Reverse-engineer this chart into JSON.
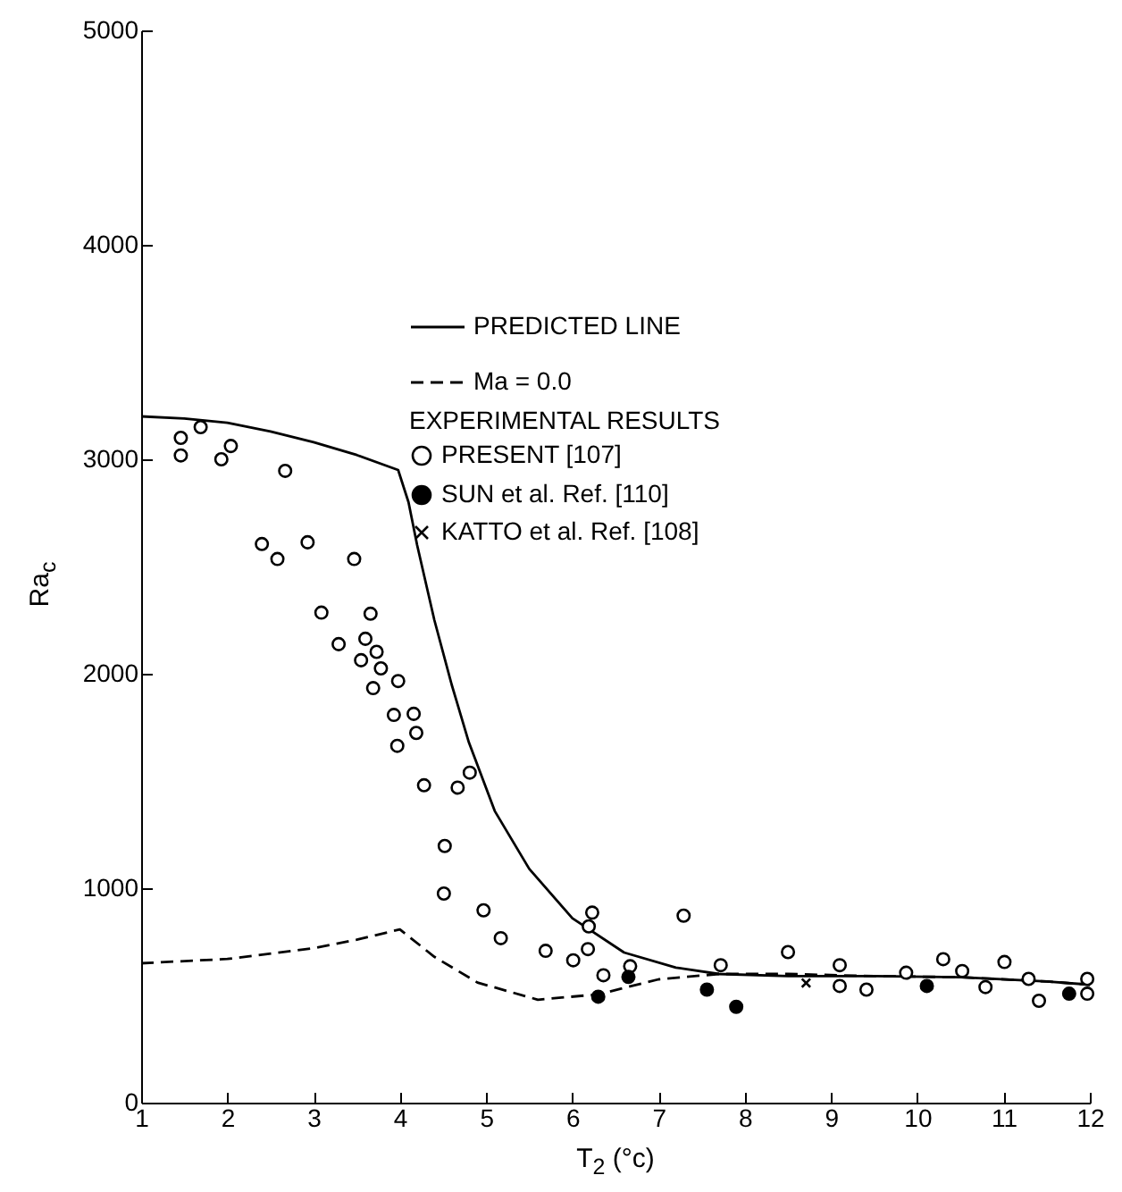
{
  "chart_data": {
    "type": "scatter",
    "xlabel": "T$_{2}$ (°c)",
    "ylabel": "Ra$_{c}$",
    "legend_title": "EXPERIMENTAL RESULTS",
    "legend": "top",
    "grid": false,
    "xlim": [
      1,
      12
    ],
    "xticks": [
      1,
      2,
      3,
      4,
      5,
      6,
      7,
      8,
      9,
      10,
      11,
      12
    ],
    "ylim": [
      0,
      5000
    ],
    "yticks": [
      0,
      1000,
      2000,
      3000,
      4000,
      5000
    ],
    "series": [
      {
        "name": "PREDICTED LINE",
        "type": "line",
        "line_style": "solid",
        "color": "#000000",
        "x": [
          1,
          1.5,
          2,
          2.5,
          3,
          3.5,
          3.98,
          4.1,
          4.2,
          4.4,
          4.6,
          4.8,
          5.1,
          5.5,
          6,
          6.6,
          7.2,
          7.7,
          8.5,
          9.5,
          10.5,
          11.5,
          12
        ],
        "values": [
          3200,
          3190,
          3170,
          3130,
          3080,
          3020,
          2950,
          2800,
          2600,
          2250,
          1950,
          1680,
          1360,
          1090,
          860,
          700,
          630,
          600,
          590,
          590,
          585,
          565,
          550
        ]
      },
      {
        "name": "Ma = 0.0",
        "type": "line",
        "line_style": "dashed",
        "color": "#000000",
        "x": [
          1,
          2,
          3,
          3.5,
          4,
          4.4,
          4.9,
          5.6,
          6.3,
          7,
          7.7,
          8.5,
          9.5,
          10.5,
          11.5,
          12
        ],
        "values": [
          650,
          670,
          720,
          760,
          808,
          680,
          560,
          480,
          505,
          575,
          600,
          600,
          590,
          585,
          565,
          550
        ]
      },
      {
        "name": "PRESENT   [107]",
        "type": "scatter",
        "marker": "circle",
        "color": "#ffffff",
        "x": [
          1.46,
          1.46,
          1.69,
          1.93,
          2.04,
          2.67,
          2.4,
          2.58,
          2.93,
          3.47,
          3.09,
          3.66,
          3.29,
          3.6,
          3.55,
          3.73,
          3.78,
          3.69,
          3.98,
          3.93,
          4.16,
          4.19,
          3.97,
          4.28,
          4.67,
          4.81,
          4.52,
          4.51,
          4.97,
          5.17,
          5.69,
          6.01,
          6.18,
          6.19,
          6.23,
          6.36,
          6.67,
          7.29,
          7.72,
          8.5,
          9.1,
          9.1,
          9.41,
          9.87,
          10.3,
          10.52,
          10.79,
          11.01,
          11.29,
          11.41,
          11.97,
          11.97
        ],
        "values": [
          3100,
          3018,
          3150,
          3000,
          3062,
          2946,
          2605,
          2535,
          2613,
          2535,
          2285,
          2280,
          2138,
          2163,
          2063,
          2102,
          2025,
          1933,
          1966,
          1808,
          1813,
          1724,
          1664,
          1480,
          1469,
          1539,
          1197,
          975,
          897,
          767,
          708,
          664,
          716,
          822,
          886,
          594,
          636,
          872,
          641,
          702,
          641,
          544,
          527,
          606,
          669,
          614,
          539,
          656,
          577,
          475,
          577,
          508
        ]
      },
      {
        "name": "SUN et al.   Ref. [110]",
        "type": "scatter",
        "marker": "circle",
        "color": "#000000",
        "x": [
          6.3,
          6.65,
          7.56,
          7.9,
          10.11,
          11.76
        ],
        "values": [
          494,
          586,
          527,
          447,
          544,
          508
        ]
      },
      {
        "name": "KATTO et al.   Ref. [108]",
        "type": "scatter",
        "marker": "cross",
        "color": "#000000",
        "x": [
          8.71
        ],
        "values": [
          558
        ]
      }
    ]
  }
}
